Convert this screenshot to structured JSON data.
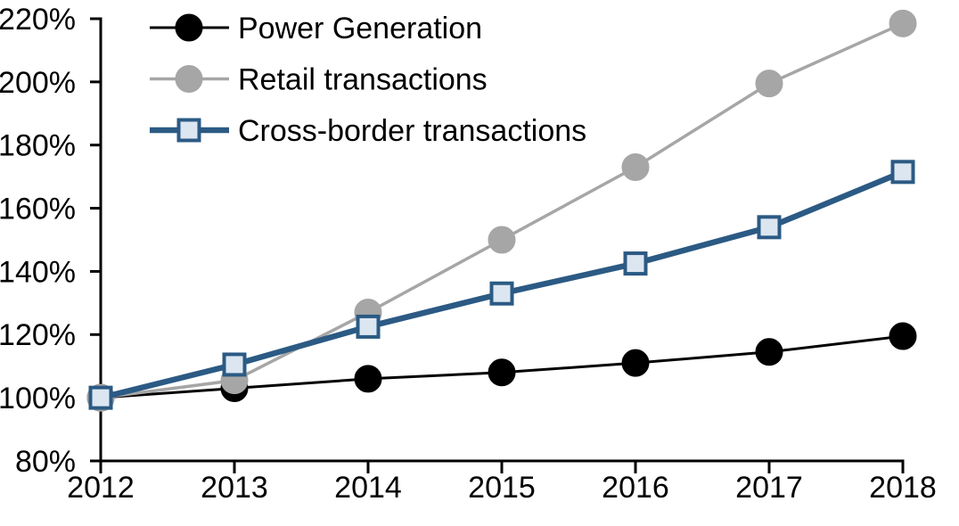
{
  "chart_data": {
    "type": "line",
    "title": "",
    "xlabel": "",
    "ylabel": "",
    "categories": [
      "2012",
      "2013",
      "2014",
      "2015",
      "2016",
      "2017",
      "2018"
    ],
    "series": [
      {
        "name": "Power Generation",
        "line_color": "#000000",
        "line_width": 3,
        "marker": "circle",
        "marker_fill": "#000000",
        "marker_stroke": "#000000",
        "values": [
          100,
          103,
          106,
          108,
          111,
          114.5,
          119.5
        ]
      },
      {
        "name": "Retail transactions",
        "line_color": "#a6a6a6",
        "line_width": 3.5,
        "marker": "circle",
        "marker_fill": "#a6a6a6",
        "marker_stroke": "#a6a6a6",
        "values": [
          100,
          105.5,
          127,
          150,
          173,
          199.5,
          218.5
        ]
      },
      {
        "name": "Cross-border transactions",
        "line_color": "#2b5a84",
        "line_width": 6.5,
        "marker": "square",
        "marker_fill": "#dce6f1",
        "marker_stroke": "#2b5a84",
        "values": [
          100,
          110.5,
          122.5,
          133,
          142.5,
          154,
          171.5
        ]
      }
    ],
    "y_axis": {
      "min": 80,
      "max": 220,
      "step": 20,
      "tick_suffix": "%"
    },
    "x_axis": {
      "ticks": [
        "2012",
        "2013",
        "2014",
        "2015",
        "2016",
        "2017",
        "2018"
      ]
    },
    "legend_position": "top-left",
    "grid": false,
    "axis_color": "#000000",
    "background_color": "#ffffff"
  }
}
